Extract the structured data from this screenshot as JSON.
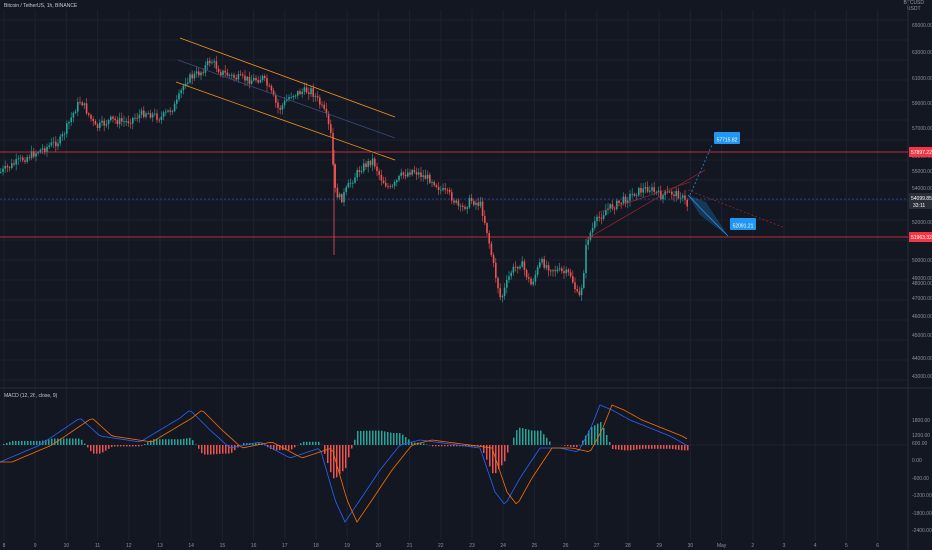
{
  "header": {
    "symbol_title": "Bitcoin / TetherUS, 1h, BINANCE",
    "quote_unit_line1": "BTCUSD",
    "quote_unit_line2": "USDT"
  },
  "macd": {
    "title": "MACD (12, 26, close, 9)",
    "axis_labels": [
      "1800.00",
      "1200.00",
      "600.00",
      "0.00",
      "-600.00",
      "-1200.00",
      "-1800.00",
      "-2400.00"
    ]
  },
  "price_axis": {
    "labels": [
      "65000.00",
      "63000.00",
      "61000.00",
      "59000.00",
      "57000.00",
      "56000.00",
      "55000.00",
      "54000.00",
      "53000.00",
      "52000.00",
      "50000.00",
      "49000.00",
      "48000.00",
      "47000.00",
      "46000.00",
      "45000.00",
      "44000.00",
      "43000.00"
    ]
  },
  "price_tags": {
    "resistance": "57897.22",
    "current": "54099.85",
    "current_time": "33:11",
    "support": "51963.32"
  },
  "annotations": {
    "target_up": "57715.82",
    "target_down": "52091.21"
  },
  "time_axis": {
    "labels": [
      "8",
      "9",
      "10",
      "11",
      "12",
      "13",
      "14",
      "15",
      "16",
      "17",
      "18",
      "19",
      "20",
      "21",
      "22",
      "23",
      "24",
      "25",
      "26",
      "27",
      "28",
      "29",
      "30",
      "May",
      "2",
      "3",
      "4",
      "5",
      "6"
    ]
  },
  "colors": {
    "background": "#131722",
    "up": "#26a69a",
    "down": "#ef5350",
    "channel": "#f7931a",
    "tag_blue": "#2196f3",
    "level_red": "#f23645"
  }
}
